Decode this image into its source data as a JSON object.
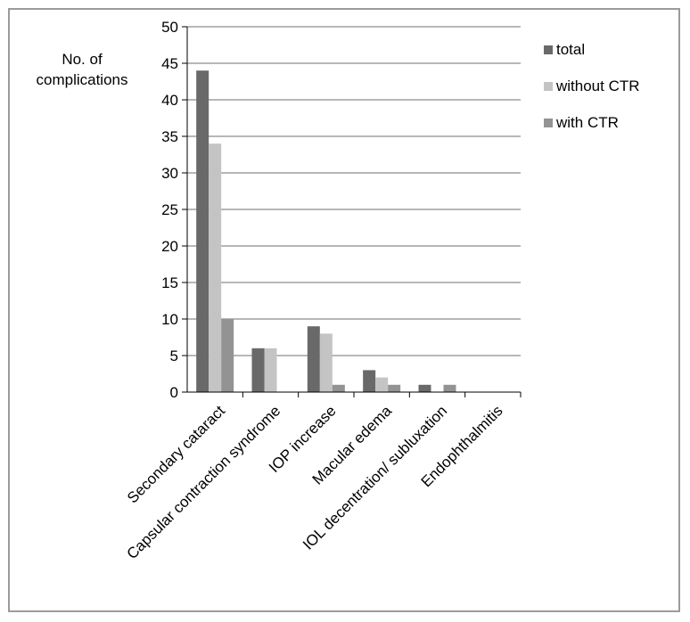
{
  "chart_data": {
    "type": "bar",
    "title": "",
    "ylabel_lines": [
      "No. of",
      "complications"
    ],
    "xlabel": "",
    "ylim": [
      0,
      50
    ],
    "ytick_step": 5,
    "grid": true,
    "legend_position": "right",
    "categories": [
      "Secondary cataract",
      "Capsular contraction syndrome",
      "IOP increase",
      "Macular edema",
      "IOL decentration/ subluxation",
      "Endophthalmitis"
    ],
    "series": [
      {
        "name": "total",
        "color": "#696969",
        "values": [
          44,
          6,
          9,
          3,
          1,
          0
        ]
      },
      {
        "name": "without CTR",
        "color": "#c4c4c4",
        "values": [
          34,
          6,
          8,
          2,
          0,
          0
        ]
      },
      {
        "name": "with CTR",
        "color": "#939393",
        "values": [
          10,
          0,
          1,
          1,
          1,
          0
        ]
      }
    ]
  }
}
